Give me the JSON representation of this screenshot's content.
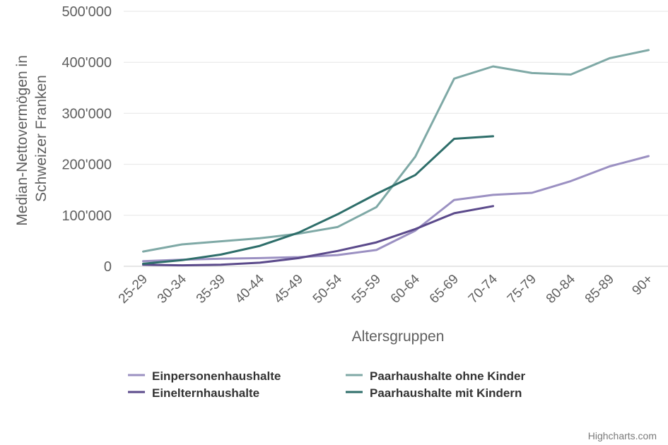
{
  "chart_data": {
    "type": "line",
    "title": "",
    "xlabel": "Altersgruppen",
    "ylabel_lines": [
      "Median-Nettovermögen in",
      "Schweizer Franken"
    ],
    "ylim": [
      0,
      500000
    ],
    "y_ticks": [
      0,
      100000,
      200000,
      300000,
      400000,
      500000
    ],
    "y_tick_labels": [
      "0",
      "100'000",
      "200'000",
      "300'000",
      "400'000",
      "500'000"
    ],
    "categories": [
      "25-29",
      "30-34",
      "35-39",
      "40-44",
      "45-49",
      "50-54",
      "55-59",
      "60-64",
      "65-69",
      "70-74",
      "75-79",
      "80-84",
      "85-89",
      "90+"
    ],
    "grid": true,
    "legend_position": "bottom",
    "series": [
      {
        "name": "Einpersonenhaushalte",
        "color": "#9b90c2",
        "values": [
          10000,
          13000,
          15000,
          16000,
          18000,
          22000,
          32000,
          70000,
          130000,
          140000,
          144000,
          167000,
          196000,
          216000
        ]
      },
      {
        "name": "Paarhaushalte ohne Kinder",
        "color": "#7fa9a6",
        "values": [
          29000,
          43000,
          49000,
          55000,
          64000,
          77000,
          116000,
          215000,
          368000,
          392000,
          379000,
          376000,
          408000,
          424000
        ]
      },
      {
        "name": "Eineltern­haushalte",
        "color": "#5b4a8b",
        "values": [
          3000,
          2000,
          3000,
          7000,
          16000,
          30000,
          47000,
          73000,
          104000,
          118000,
          null,
          null,
          null,
          null
        ]
      },
      {
        "name": "Paarhaushalte mit Kindern",
        "color": "#2e6e6a",
        "values": [
          5000,
          12000,
          23000,
          40000,
          66000,
          102000,
          142000,
          179000,
          250000,
          255000,
          null,
          null,
          null,
          null
        ]
      }
    ],
    "credit": "Highcharts.com"
  }
}
